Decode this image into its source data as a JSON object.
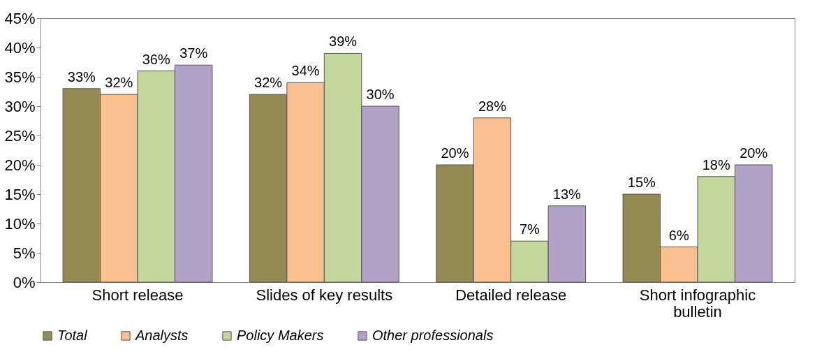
{
  "chart_data": {
    "type": "bar",
    "categories": [
      "Short release",
      "Slides of key results",
      "Detailed release",
      "Short infographic bulletin"
    ],
    "series": [
      {
        "name": "Total",
        "color": "#948a54",
        "values": [
          33,
          32,
          20,
          15
        ],
        "value_labels": [
          "33%",
          "32%",
          "20%",
          "15%"
        ]
      },
      {
        "name": "Analysts",
        "color": "#fac090",
        "values": [
          32,
          34,
          28,
          6
        ],
        "value_labels": [
          "32%",
          "34%",
          "28%",
          "6%"
        ]
      },
      {
        "name": "Policy Makers",
        "color": "#c3d69b",
        "values": [
          36,
          39,
          7,
          18
        ],
        "value_labels": [
          "36%",
          "39%",
          "7%",
          "18%"
        ]
      },
      {
        "name": "Other professionals",
        "color": "#b3a2c7",
        "values": [
          37,
          30,
          13,
          20
        ],
        "value_labels": [
          "37%",
          "30%",
          "13%",
          "20%"
        ]
      }
    ],
    "ylim": [
      0,
      45
    ],
    "yticks": [
      {
        "value": 0,
        "label": "0%"
      },
      {
        "value": 5,
        "label": "5%"
      },
      {
        "value": 10,
        "label": "10%"
      },
      {
        "value": 15,
        "label": "15%"
      },
      {
        "value": 20,
        "label": "20%"
      },
      {
        "value": 25,
        "label": "25%"
      },
      {
        "value": 30,
        "label": "30%"
      },
      {
        "value": 35,
        "label": "35%"
      },
      {
        "value": 40,
        "label": "40%"
      },
      {
        "value": 45,
        "label": "45%"
      }
    ],
    "legend": "bottom"
  }
}
